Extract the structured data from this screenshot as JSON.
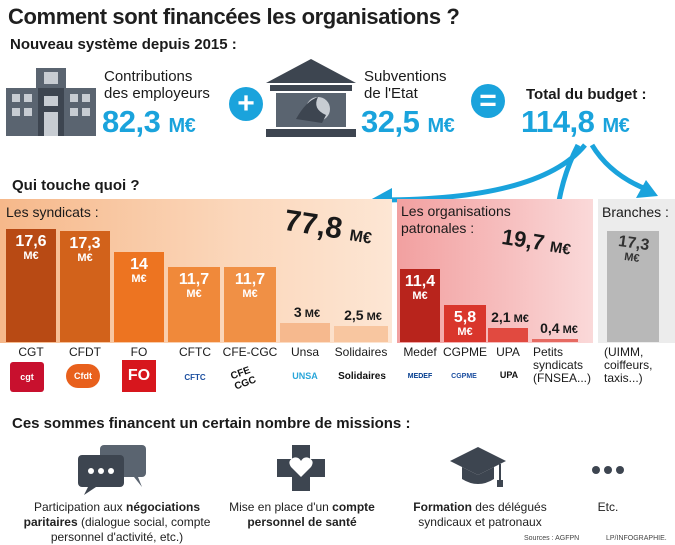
{
  "header": {
    "title": "Comment sont financées les organisations ?",
    "subtitle": "Nouveau système depuis 2015 :"
  },
  "funding": {
    "employers": {
      "label_line1": "Contributions",
      "label_line2": "des employeurs",
      "value": "82,3",
      "unit": "M€"
    },
    "plus": "+",
    "state": {
      "label_line1": "Subventions",
      "label_line2": "de l'Etat",
      "value": "32,5",
      "unit": "M€"
    },
    "equals": "=",
    "total": {
      "label": "Total du budget :",
      "value": "114,8",
      "unit": "M€"
    }
  },
  "who": {
    "heading": "Qui touche quoi ?"
  },
  "groups": {
    "syndicats": {
      "label": "Les syndicats :",
      "total": "77,8",
      "unit": "M€"
    },
    "patronales": {
      "label_line1": "Les organisations",
      "label_line2": "patronales :",
      "total": "19,7",
      "unit": "M€"
    },
    "branches": {
      "label": "Branches :",
      "value": "17,3",
      "unit": "M€",
      "note_line1": "(UIMM,",
      "note_line2": "coiffeurs,",
      "note_line3": "taxis...)"
    }
  },
  "chart_data": {
    "type": "bar",
    "title": "Qui touche quoi ?",
    "unit": "M€",
    "categories": [
      "CGT",
      "CFDT",
      "FO",
      "CFTC",
      "CFE-CGC",
      "Unsa",
      "Solidaires",
      "Medef",
      "CGPME",
      "UPA",
      "Petits syndicats (FNSEA...)",
      "Branches (UIMM, coiffeurs, taxis...)"
    ],
    "values": [
      17.6,
      17.3,
      14,
      11.7,
      11.7,
      3,
      2.5,
      11.4,
      5.8,
      2.1,
      0.4,
      17.3
    ],
    "value_labels": [
      "17,6",
      "17,3",
      "14",
      "11,7",
      "11,7",
      "3",
      "2,5",
      "11,4",
      "5,8",
      "2,1",
      "0,4",
      "17,3"
    ],
    "groups": [
      {
        "name": "Les syndicats",
        "total": 77.8,
        "indices": [
          0,
          1,
          2,
          3,
          4,
          5,
          6
        ]
      },
      {
        "name": "Les organisations patronales",
        "total": 19.7,
        "indices": [
          7,
          8,
          9,
          10
        ]
      },
      {
        "name": "Branches",
        "total": 17.3,
        "indices": [
          11
        ]
      }
    ],
    "colors": {
      "syndicats": [
        "#b84a14",
        "#d2621b",
        "#ed7421",
        "#f0893a",
        "#f09045",
        "#f6b98e",
        "#f8c6a0"
      ],
      "patronales": [
        "#b8241c",
        "#d9362c",
        "#e14a40",
        "#e66a62"
      ],
      "branches": "#b8b8b8"
    },
    "ylim": [
      0,
      20
    ]
  },
  "categories_display": {
    "cgt": "CGT",
    "cfdt": "CFDT",
    "fo": "FO",
    "cftc": "CFTC",
    "cfecgc": "CFE-CGC",
    "unsa": "Unsa",
    "solidaires": "Solidaires",
    "medef": "Medef",
    "cgpme": "CGPME",
    "upa": "UPA",
    "petits_line1": "Petits",
    "petits_line2": "syndicats",
    "petits_line3": "(FNSEA...)"
  },
  "logos": {
    "cgt": "cgt",
    "cfdt": "Cfdt",
    "fo": "FO",
    "cftc": "CFTC",
    "cfecgc": "CFE CGC",
    "unsa": "UNSA",
    "solidaires": "Solidaires",
    "medef": "MEDEF",
    "cgpme": "CGPME",
    "upa": "UPA"
  },
  "missions": {
    "heading": "Ces sommes financent un certain nombre de missions :",
    "items": [
      {
        "icon": "chat-bubbles-icon",
        "pre": "Participation aux ",
        "bold": "négociations",
        "bold2": "paritaires",
        "post": " (dialogue social, compte",
        "post2": "personnel d'activité, etc.)"
      },
      {
        "icon": "health-cross-heart-icon",
        "pre": "Mise en place d'un ",
        "bold": "compte",
        "bold2": "personnel de santé"
      },
      {
        "icon": "graduation-cap-icon",
        "bold": "Formation",
        "post": " des délégués",
        "post2": "syndicaux et patronaux"
      },
      {
        "icon": "more-dots-icon",
        "post": "Etc."
      }
    ]
  },
  "footer": {
    "sources": "Sources : AGFPN",
    "credit": "LP/INFOGRAPHIE."
  }
}
